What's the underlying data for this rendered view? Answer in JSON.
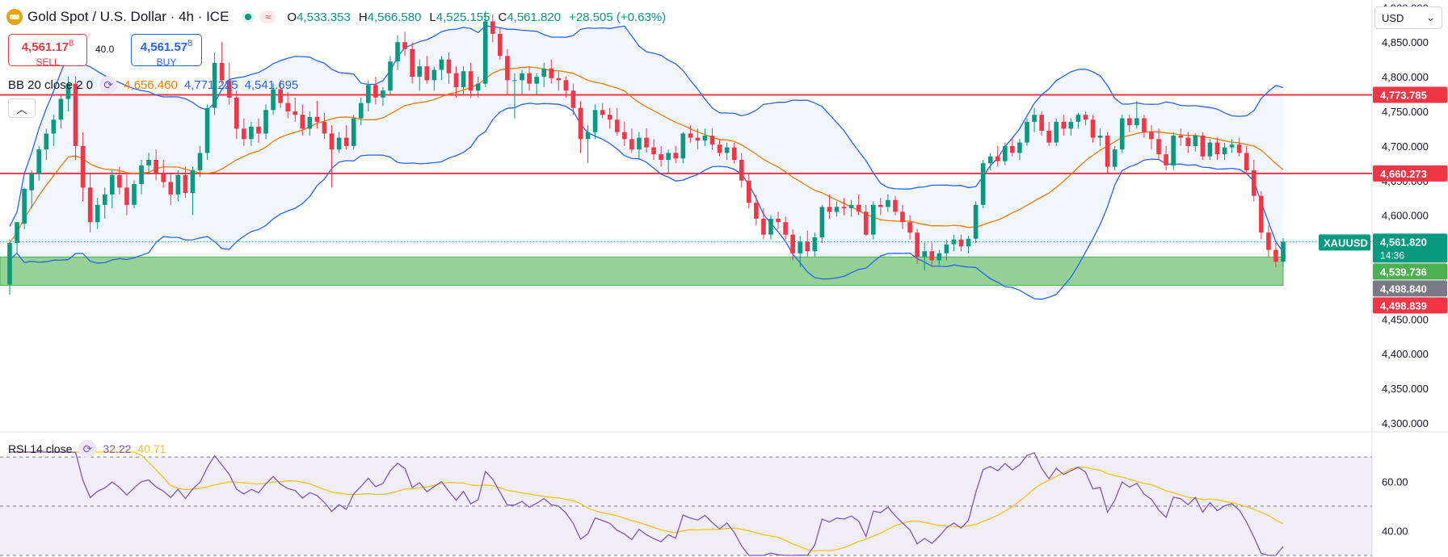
{
  "header": {
    "title": "Gold Spot / U.S. Dollar · 4h · ICE",
    "open_label": "O",
    "open": "4,533.353",
    "high_label": "H",
    "high": "4,566.580",
    "low_label": "L",
    "low": "4,525.155",
    "close_label": "C",
    "close": "4,561.820",
    "change": "+28.505 (+0.63%)"
  },
  "quote": {
    "sell_price": "4,561.17",
    "sell_sup": "8",
    "sell_label": "SELL",
    "buy_price": "4,561.57",
    "buy_sup": "8",
    "buy_label": "BUY",
    "spread": "40.0"
  },
  "bb": {
    "label": "BB 20 close 2 0",
    "basis": "4,656.460",
    "upper": "4,771.225",
    "lower": "4,541.695"
  },
  "rsi": {
    "label": "RSI 14 close",
    "value": "32.22",
    "ma": "40.71"
  },
  "currency": "USD",
  "colors": {
    "up": "#089981",
    "down": "#f23645",
    "bb_band": "#2962ff",
    "bb_basis": "#f57c00",
    "rsi_line": "#7e57c2",
    "rsi_ma": "#f5c518",
    "zone": "#8bcc8b",
    "resistance": "#f23645"
  },
  "chart_data": [
    {
      "type": "candlestick",
      "symbol": "XAUUSD",
      "timeframe": "4h",
      "y_ticks": [
        "4,300.000",
        "4,350.000",
        "4,400.000",
        "4,450.000",
        "4,500.000",
        "4,550.000",
        "4,600.000",
        "4,650.000",
        "4,700.000",
        "4,750.000",
        "4,800.000",
        "4,850.000",
        "4,900.000"
      ],
      "ylim": [
        4293,
        4905
      ],
      "horizontal_lines": [
        {
          "value": 4773.785,
          "label": "4,773.785"
        },
        {
          "value": 4660.273,
          "label": "4,660.273"
        }
      ],
      "zone": {
        "top": 4539.736,
        "bottom": 4498.84
      },
      "price_tags": [
        {
          "name": "XAUUSD",
          "value": 4561.82,
          "label": "4,561.820",
          "sub": "14:36",
          "color": "#089981"
        },
        {
          "value": 4539.736,
          "label": "4,539.736",
          "color": "#4caf50"
        },
        {
          "value": 4498.84,
          "label": "4,498.840",
          "color": "#787b86"
        },
        {
          "value": 4498.839,
          "label": "4,498.839",
          "color": "#f23645"
        }
      ],
      "candles": [
        [
          4500,
          4565,
          4485,
          4560
        ],
        [
          4560,
          4590,
          4545,
          4590
        ],
        [
          4588,
          4640,
          4580,
          4638
        ],
        [
          4636,
          4665,
          4610,
          4660
        ],
        [
          4660,
          4700,
          4650,
          4695
        ],
        [
          4695,
          4725,
          4680,
          4718
        ],
        [
          4718,
          4745,
          4700,
          4738
        ],
        [
          4738,
          4775,
          4725,
          4768
        ],
        [
          4768,
          4800,
          4750,
          4790
        ],
        [
          4790,
          4800,
          4680,
          4700
        ],
        [
          4700,
          4720,
          4620,
          4640
        ],
        [
          4640,
          4660,
          4575,
          4590
        ],
        [
          4590,
          4625,
          4580,
          4615
        ],
        [
          4615,
          4640,
          4595,
          4630
        ],
        [
          4630,
          4665,
          4610,
          4658
        ],
        [
          4658,
          4670,
          4630,
          4640
        ],
        [
          4640,
          4660,
          4600,
          4615
        ],
        [
          4615,
          4650,
          4610,
          4645
        ],
        [
          4645,
          4680,
          4630,
          4672
        ],
        [
          4672,
          4690,
          4660,
          4680
        ],
        [
          4680,
          4695,
          4650,
          4660
        ],
        [
          4660,
          4680,
          4640,
          4648
        ],
        [
          4648,
          4660,
          4615,
          4630
        ],
        [
          4630,
          4665,
          4620,
          4658
        ],
        [
          4658,
          4670,
          4625,
          4632
        ],
        [
          4632,
          4670,
          4600,
          4665
        ],
        [
          4665,
          4700,
          4655,
          4690
        ],
        [
          4690,
          4760,
          4680,
          4755
        ],
        [
          4755,
          4835,
          4745,
          4820
        ],
        [
          4820,
          4850,
          4790,
          4795
        ],
        [
          4795,
          4820,
          4760,
          4770
        ],
        [
          4770,
          4780,
          4710,
          4725
        ],
        [
          4725,
          4740,
          4700,
          4710
        ],
        [
          4710,
          4735,
          4700,
          4728
        ],
        [
          4728,
          4740,
          4705,
          4718
        ],
        [
          4718,
          4760,
          4710,
          4752
        ],
        [
          4752,
          4790,
          4745,
          4782
        ],
        [
          4782,
          4795,
          4755,
          4762
        ],
        [
          4762,
          4778,
          4740,
          4750
        ],
        [
          4750,
          4770,
          4735,
          4745
        ],
        [
          4745,
          4760,
          4715,
          4725
        ],
        [
          4725,
          4750,
          4715,
          4742
        ],
        [
          4742,
          4765,
          4725,
          4735
        ],
        [
          4735,
          4748,
          4710,
          4718
        ],
        [
          4718,
          4730,
          4640,
          4695
        ],
        [
          4695,
          4720,
          4690,
          4712
        ],
        [
          4712,
          4730,
          4695,
          4700
        ],
        [
          4700,
          4745,
          4695,
          4740
        ],
        [
          4740,
          4770,
          4730,
          4762
        ],
        [
          4762,
          4795,
          4750,
          4788
        ],
        [
          4788,
          4800,
          4760,
          4770
        ],
        [
          4770,
          4785,
          4758,
          4780
        ],
        [
          4780,
          4830,
          4775,
          4822
        ],
        [
          4822,
          4860,
          4810,
          4850
        ],
        [
          4850,
          4865,
          4830,
          4840
        ],
        [
          4840,
          4850,
          4790,
          4800
        ],
        [
          4800,
          4825,
          4780,
          4815
        ],
        [
          4815,
          4830,
          4790,
          4795
        ],
        [
          4795,
          4815,
          4780,
          4810
        ],
        [
          4810,
          4830,
          4795,
          4825
        ],
        [
          4825,
          4835,
          4790,
          4805
        ],
        [
          4805,
          4815,
          4770,
          4785
        ],
        [
          4785,
          4815,
          4775,
          4808
        ],
        [
          4808,
          4820,
          4770,
          4780
        ],
        [
          4780,
          4800,
          4770,
          4790
        ],
        [
          4790,
          4895,
          4785,
          4880
        ],
        [
          4880,
          4890,
          4850,
          4862
        ],
        [
          4862,
          4870,
          4825,
          4830
        ],
        [
          4830,
          4840,
          4775,
          4795
        ],
        [
          4795,
          4805,
          4740,
          4795
        ],
        [
          4795,
          4810,
          4775,
          4805
        ],
        [
          4805,
          4815,
          4780,
          4790
        ],
        [
          4790,
          4805,
          4775,
          4800
        ],
        [
          4800,
          4820,
          4785,
          4812
        ],
        [
          4812,
          4825,
          4790,
          4798
        ],
        [
          4798,
          4808,
          4780,
          4795
        ],
        [
          4795,
          4800,
          4770,
          4780
        ],
        [
          4780,
          4790,
          4745,
          4755
        ],
        [
          4755,
          4765,
          4690,
          4710
        ],
        [
          4710,
          4730,
          4675,
          4720
        ],
        [
          4720,
          4760,
          4710,
          4752
        ],
        [
          4752,
          4762,
          4740,
          4745
        ],
        [
          4745,
          4755,
          4725,
          4738
        ],
        [
          4738,
          4755,
          4715,
          4720
        ],
        [
          4720,
          4735,
          4700,
          4710
        ],
        [
          4710,
          4725,
          4690,
          4695
        ],
        [
          4695,
          4720,
          4680,
          4712
        ],
        [
          4712,
          4725,
          4690,
          4698
        ],
        [
          4698,
          4710,
          4680,
          4688
        ],
        [
          4688,
          4700,
          4670,
          4680
        ],
        [
          4680,
          4695,
          4660,
          4690
        ],
        [
          4690,
          4700,
          4675,
          4682
        ],
        [
          4682,
          4720,
          4675,
          4718
        ],
        [
          4718,
          4730,
          4705,
          4712
        ],
        [
          4712,
          4725,
          4695,
          4708
        ],
        [
          4708,
          4725,
          4700,
          4715
        ],
        [
          4715,
          4725,
          4695,
          4702
        ],
        [
          4702,
          4710,
          4685,
          4690
        ],
        [
          4690,
          4705,
          4680,
          4698
        ],
        [
          4698,
          4705,
          4675,
          4680
        ],
        [
          4680,
          4690,
          4640,
          4650
        ],
        [
          4650,
          4660,
          4610,
          4618
        ],
        [
          4618,
          4630,
          4585,
          4595
        ],
        [
          4595,
          4610,
          4565,
          4572
        ],
        [
          4572,
          4600,
          4565,
          4595
        ],
        [
          4595,
          4605,
          4580,
          4590
        ],
        [
          4590,
          4598,
          4565,
          4572
        ],
        [
          4572,
          4580,
          4535,
          4545
        ],
        [
          4545,
          4570,
          4525,
          4562
        ],
        [
          4562,
          4578,
          4540,
          4548
        ],
        [
          4548,
          4575,
          4540,
          4568
        ],
        [
          4568,
          4615,
          4560,
          4612
        ],
        [
          4612,
          4630,
          4595,
          4605
        ],
        [
          4605,
          4620,
          4598,
          4612
        ],
        [
          4612,
          4625,
          4600,
          4610
        ],
        [
          4610,
          4622,
          4598,
          4615
        ],
        [
          4615,
          4630,
          4600,
          4605
        ],
        [
          4605,
          4615,
          4570,
          4572
        ],
        [
          4572,
          4620,
          4565,
          4615
        ],
        [
          4615,
          4625,
          4600,
          4612
        ],
        [
          4612,
          4630,
          4605,
          4622
        ],
        [
          4622,
          4628,
          4600,
          4605
        ],
        [
          4605,
          4615,
          4580,
          4590
        ],
        [
          4590,
          4600,
          4565,
          4575
        ],
        [
          4575,
          4580,
          4530,
          4540
        ],
        [
          4540,
          4560,
          4520,
          4548
        ],
        [
          4548,
          4560,
          4525,
          4535
        ],
        [
          4535,
          4550,
          4528,
          4545
        ],
        [
          4545,
          4565,
          4535,
          4558
        ],
        [
          4558,
          4572,
          4548,
          4565
        ],
        [
          4565,
          4572,
          4548,
          4555
        ],
        [
          4555,
          4570,
          4545,
          4566
        ],
        [
          4566,
          4620,
          4560,
          4615
        ],
        [
          4615,
          4680,
          4610,
          4675
        ],
        [
          4675,
          4690,
          4665,
          4685
        ],
        [
          4685,
          4700,
          4670,
          4678
        ],
        [
          4678,
          4705,
          4672,
          4700
        ],
        [
          4700,
          4712,
          4685,
          4690
        ],
        [
          4690,
          4710,
          4680,
          4705
        ],
        [
          4705,
          4740,
          4700,
          4735
        ],
        [
          4735,
          4755,
          4720,
          4745
        ],
        [
          4745,
          4750,
          4715,
          4722
        ],
        [
          4722,
          4735,
          4700,
          4705
        ],
        [
          4705,
          4740,
          4700,
          4735
        ],
        [
          4735,
          4745,
          4715,
          4725
        ],
        [
          4725,
          4740,
          4715,
          4735
        ],
        [
          4735,
          4748,
          4725,
          4745
        ],
        [
          4745,
          4750,
          4730,
          4738
        ],
        [
          4738,
          4745,
          4705,
          4712
        ],
        [
          4712,
          4725,
          4700,
          4715
        ],
        [
          4715,
          4720,
          4660,
          4670
        ],
        [
          4670,
          4700,
          4665,
          4695
        ],
        [
          4695,
          4745,
          4690,
          4740
        ],
        [
          4740,
          4745,
          4720,
          4730
        ],
        [
          4730,
          4765,
          4725,
          4740
        ],
        [
          4740,
          4745,
          4712,
          4720
        ],
        [
          4720,
          4730,
          4695,
          4710
        ],
        [
          4710,
          4725,
          4680,
          4688
        ],
        [
          4688,
          4700,
          4665,
          4672
        ],
        [
          4672,
          4720,
          4665,
          4715
        ],
        [
          4715,
          4725,
          4700,
          4712
        ],
        [
          4712,
          4720,
          4690,
          4700
        ],
        [
          4700,
          4718,
          4692,
          4715
        ],
        [
          4715,
          4720,
          4680,
          4685
        ],
        [
          4685,
          4710,
          4680,
          4705
        ],
        [
          4705,
          4712,
          4680,
          4688
        ],
        [
          4688,
          4705,
          4680,
          4698
        ],
        [
          4698,
          4710,
          4690,
          4702
        ],
        [
          4702,
          4712,
          4685,
          4690
        ],
        [
          4690,
          4700,
          4660,
          4665
        ],
        [
          4665,
          4680,
          4620,
          4628
        ],
        [
          4628,
          4635,
          4565,
          4575
        ],
        [
          4575,
          4585,
          4540,
          4550
        ],
        [
          4550,
          4560,
          4525,
          4533
        ],
        [
          4533,
          4567,
          4525,
          4562
        ]
      ],
      "bb_basis_shape": "orange 20-period moving average",
      "bb_note": "upper/lower Bollinger bands drawn around basis"
    },
    {
      "type": "line",
      "name": "RSI",
      "y_ticks": [
        "40.00",
        "60.00"
      ],
      "ylim": [
        30,
        72
      ],
      "levels": [
        70,
        50,
        30
      ]
    }
  ]
}
